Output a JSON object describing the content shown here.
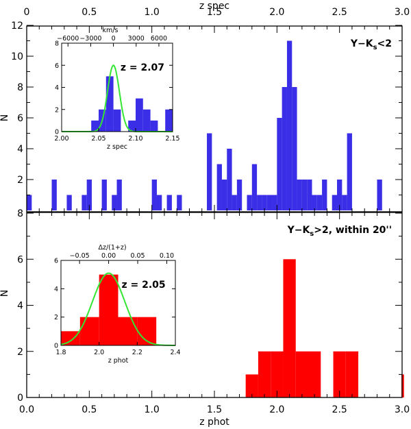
{
  "chart_data": [
    {
      "id": "top_panel",
      "type": "bar",
      "xlabel": "z spec",
      "ylabel": "N",
      "xlim": [
        0,
        3
      ],
      "ylim": [
        0,
        12
      ],
      "xticks": [
        "0",
        "0.5",
        "1.0",
        "1.5",
        "2.0",
        "2.5",
        "3.0"
      ],
      "yticks": [
        "2",
        "4",
        "6",
        "8",
        "10",
        "12"
      ],
      "bin_width": 0.04,
      "bins": [
        {
          "x": 0.0,
          "n": 1
        },
        {
          "x": 0.2,
          "n": 2
        },
        {
          "x": 0.32,
          "n": 1
        },
        {
          "x": 0.44,
          "n": 1
        },
        {
          "x": 0.48,
          "n": 2
        },
        {
          "x": 0.6,
          "n": 2
        },
        {
          "x": 0.68,
          "n": 1
        },
        {
          "x": 0.72,
          "n": 2
        },
        {
          "x": 1.0,
          "n": 2
        },
        {
          "x": 1.04,
          "n": 1
        },
        {
          "x": 1.12,
          "n": 1
        },
        {
          "x": 1.2,
          "n": 1
        },
        {
          "x": 1.44,
          "n": 5
        },
        {
          "x": 1.52,
          "n": 3
        },
        {
          "x": 1.56,
          "n": 2
        },
        {
          "x": 1.6,
          "n": 4
        },
        {
          "x": 1.64,
          "n": 1
        },
        {
          "x": 1.68,
          "n": 2
        },
        {
          "x": 1.76,
          "n": 1
        },
        {
          "x": 1.8,
          "n": 3
        },
        {
          "x": 1.84,
          "n": 1
        },
        {
          "x": 1.88,
          "n": 1
        },
        {
          "x": 1.92,
          "n": 1
        },
        {
          "x": 1.96,
          "n": 1
        },
        {
          "x": 2.0,
          "n": 6
        },
        {
          "x": 2.04,
          "n": 8
        },
        {
          "x": 2.08,
          "n": 11
        },
        {
          "x": 2.12,
          "n": 8
        },
        {
          "x": 2.16,
          "n": 2
        },
        {
          "x": 2.2,
          "n": 2
        },
        {
          "x": 2.24,
          "n": 2
        },
        {
          "x": 2.28,
          "n": 1
        },
        {
          "x": 2.32,
          "n": 1
        },
        {
          "x": 2.36,
          "n": 2
        },
        {
          "x": 2.44,
          "n": 1
        },
        {
          "x": 2.48,
          "n": 2
        },
        {
          "x": 2.52,
          "n": 1
        },
        {
          "x": 2.56,
          "n": 5
        },
        {
          "x": 2.8,
          "n": 2
        }
      ],
      "color": "#3a2ee6",
      "label_prefix": "Y−K",
      "label_sub": "s",
      "label_suffix": "<2"
    },
    {
      "id": "top_inset",
      "type": "bar",
      "xlabel": "z spec",
      "top_axis_label": "km/s",
      "xlim": [
        2.0,
        2.15
      ],
      "ylim": [
        0,
        8
      ],
      "xticks": [
        "2.00",
        "2.05",
        "2.10",
        "2.15"
      ],
      "yticks": [
        "0",
        "2",
        "4",
        "6",
        "8"
      ],
      "top_ticks": [
        "−6000",
        "−3000",
        "0",
        "3000",
        "6000"
      ],
      "bin_width": 0.01,
      "bins": [
        {
          "x": 2.04,
          "n": 1
        },
        {
          "x": 2.05,
          "n": 2
        },
        {
          "x": 2.06,
          "n": 5
        },
        {
          "x": 2.07,
          "n": 2
        },
        {
          "x": 2.09,
          "n": 1
        },
        {
          "x": 2.1,
          "n": 3
        },
        {
          "x": 2.11,
          "n": 2
        },
        {
          "x": 2.12,
          "n": 1
        },
        {
          "x": 2.14,
          "n": 2
        }
      ],
      "gaussian": {
        "mu": 2.07,
        "sigma": 0.008,
        "peak": 6
      },
      "annotation": "z = 2.07"
    },
    {
      "id": "bottom_panel",
      "type": "bar",
      "xlabel": "z phot",
      "ylabel": "N",
      "xlim": [
        0,
        3
      ],
      "ylim": [
        0,
        8
      ],
      "xticks": [
        "0.0",
        "0.5",
        "1.0",
        "1.5",
        "2.0",
        "2.5",
        "3.0"
      ],
      "yticks": [
        "0",
        "2",
        "4",
        "6",
        "8"
      ],
      "bin_width": 0.1,
      "bins": [
        {
          "x": 1.75,
          "n": 1
        },
        {
          "x": 1.85,
          "n": 2
        },
        {
          "x": 1.95,
          "n": 2
        },
        {
          "x": 2.05,
          "n": 6
        },
        {
          "x": 2.15,
          "n": 2
        },
        {
          "x": 2.25,
          "n": 2
        },
        {
          "x": 2.45,
          "n": 2
        },
        {
          "x": 2.55,
          "n": 2
        },
        {
          "x": 2.995,
          "n": 1,
          "w": 0.02
        }
      ],
      "color": "#ff0000",
      "label_prefix": "Y−K",
      "label_sub": "s",
      "label_suffix": ">2, within 20''"
    },
    {
      "id": "bottom_inset",
      "type": "bar",
      "xlabel": "z phot",
      "top_axis_label": "Δz/(1+z)",
      "xlim": [
        1.8,
        2.4
      ],
      "ylim": [
        0,
        6
      ],
      "xticks": [
        "1.8",
        "2.0",
        "2.2",
        "2.4"
      ],
      "yticks": [
        "0",
        "2",
        "4",
        "6"
      ],
      "top_ticks": [
        "−0.05",
        "0.00",
        "0.05",
        "0.10"
      ],
      "bin_width": 0.1,
      "bins": [
        {
          "x": 1.8,
          "n": 1
        },
        {
          "x": 1.9,
          "n": 2
        },
        {
          "x": 2.0,
          "n": 5
        },
        {
          "x": 2.1,
          "n": 2
        },
        {
          "x": 2.2,
          "n": 2
        }
      ],
      "gaussian": {
        "mu": 2.05,
        "sigma": 0.085,
        "peak": 5.1
      },
      "annotation": "z = 2.05"
    }
  ],
  "colors": {
    "gaussian": "#33e633",
    "axis": "#000000"
  }
}
